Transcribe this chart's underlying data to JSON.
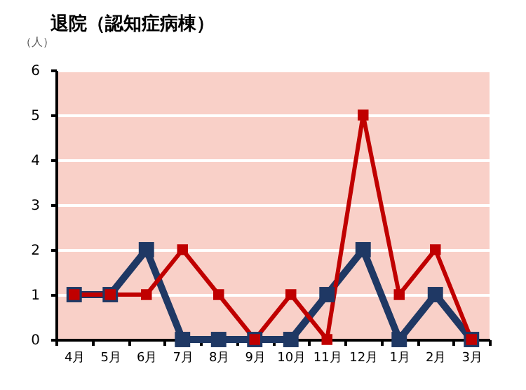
{
  "chart_data": {
    "type": "line",
    "title": "退院（認知症病棟）",
    "ylabel": "（人）",
    "categories": [
      "4月",
      "5月",
      "6月",
      "7月",
      "8月",
      "9月",
      "10月",
      "11月",
      "12月",
      "1月",
      "2月",
      "3月"
    ],
    "series": [
      {
        "color": "#1f3864",
        "values": [
          1,
          1,
          2,
          0,
          0,
          0,
          0,
          1,
          2,
          0,
          1,
          0
        ]
      },
      {
        "color": "#c00000",
        "values": [
          1,
          1,
          1,
          2,
          1,
          0,
          1,
          0,
          5,
          1,
          2,
          0
        ]
      }
    ],
    "ylim": [
      0,
      6
    ],
    "yticks": [
      0,
      1,
      2,
      3,
      4,
      5,
      6
    ],
    "grid": "y",
    "legend": false,
    "marker": "square",
    "line_style": "solid"
  }
}
